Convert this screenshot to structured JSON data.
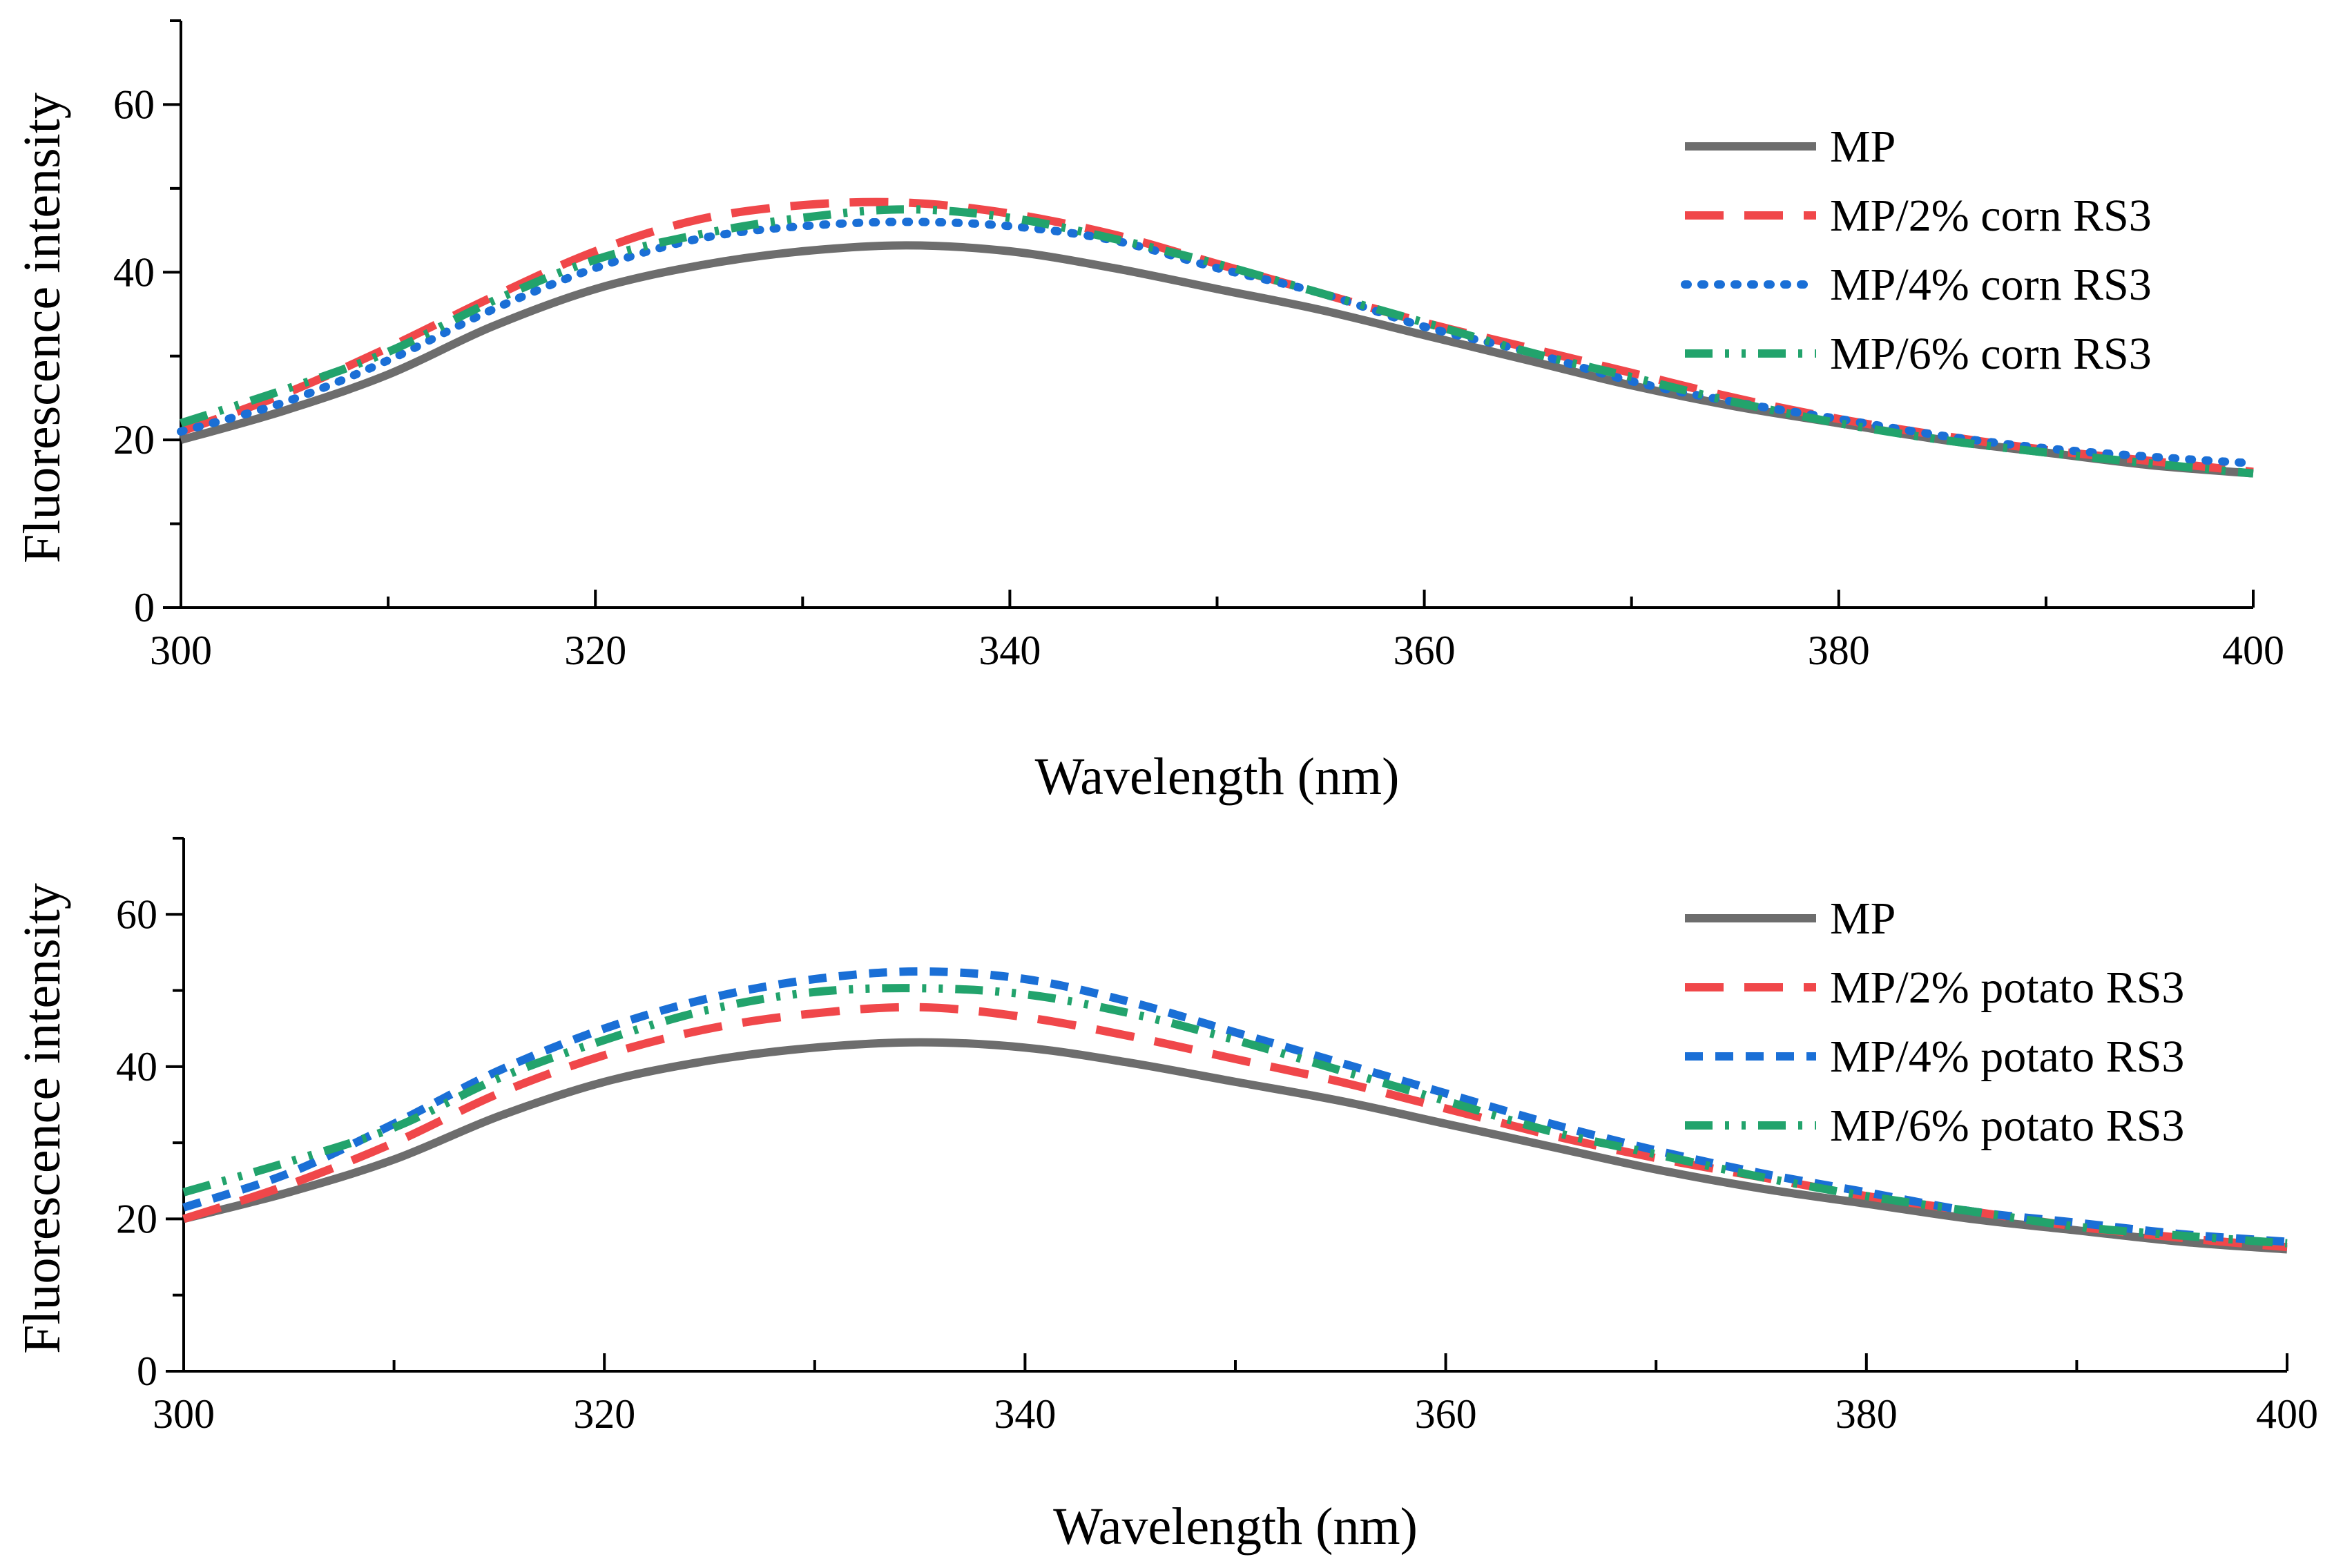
{
  "chart_data": [
    {
      "type": "line",
      "title": "",
      "xlabel": "Wavelength (nm)",
      "ylabel": "Fluorescence intensity",
      "xlim": [
        300,
        400
      ],
      "ylim": [
        0,
        70
      ],
      "x_ticks": [
        300,
        320,
        340,
        360,
        380,
        400
      ],
      "y_ticks": [
        0,
        20,
        40,
        60
      ],
      "x_tick_labels": [
        "300",
        "320",
        "340",
        "360",
        "380",
        "400"
      ],
      "y_tick_labels": [
        "0",
        "20",
        "40",
        "60"
      ],
      "grid": false,
      "legend_position": "top-right",
      "x": [
        300,
        305,
        310,
        315,
        320,
        325,
        330,
        335,
        340,
        345,
        350,
        355,
        360,
        365,
        370,
        375,
        380,
        385,
        390,
        395,
        400
      ],
      "series": [
        {
          "name": "MP",
          "color": "#6d6d6d",
          "style": "solid",
          "values": [
            20,
            23.5,
            27.8,
            33.5,
            38,
            40.8,
            42.5,
            43.2,
            42.5,
            40.5,
            38,
            35.5,
            32.5,
            29.5,
            26.5,
            24,
            22,
            20,
            18.5,
            17,
            16
          ]
        },
        {
          "name": "MP/2% corn RS3",
          "color": "#f0474a",
          "style": "dash",
          "values": [
            21,
            25.5,
            31,
            37,
            42.5,
            46.3,
            48,
            48.3,
            47,
            44.5,
            41,
            37.5,
            34,
            31,
            28,
            25,
            22.5,
            20.5,
            18.8,
            17.5,
            16.2
          ]
        },
        {
          "name": "MP/4% corn RS3",
          "color": "#1a6fd6",
          "style": "dot",
          "values": [
            21,
            24.5,
            29.5,
            35.5,
            40.5,
            44,
            45.5,
            46,
            45.5,
            43.8,
            40.5,
            37.5,
            33.5,
            30.5,
            27,
            24.5,
            22.5,
            20.5,
            19,
            18,
            17.2
          ]
        },
        {
          "name": "MP/6% corn RS3",
          "color": "#22a36c",
          "style": "dashdotdot",
          "values": [
            22,
            26,
            30.5,
            36.5,
            41.5,
            44.5,
            46.5,
            47.5,
            46.5,
            44,
            41,
            37.5,
            34,
            30.5,
            27.5,
            24.5,
            22,
            20,
            18.5,
            17.2,
            16
          ]
        }
      ]
    },
    {
      "type": "line",
      "title": "",
      "xlabel": "Wavelength (nm)",
      "ylabel": "Fluorescence intensity",
      "xlim": [
        300,
        400
      ],
      "ylim": [
        0,
        70
      ],
      "x_ticks": [
        300,
        320,
        340,
        360,
        380,
        400
      ],
      "y_ticks": [
        0,
        20,
        40,
        60
      ],
      "x_tick_labels": [
        "300",
        "320",
        "340",
        "360",
        "380",
        "400"
      ],
      "y_tick_labels": [
        "0",
        "20",
        "40",
        "60"
      ],
      "grid": false,
      "legend_position": "top-right",
      "x": [
        300,
        305,
        310,
        315,
        320,
        325,
        330,
        335,
        340,
        345,
        350,
        355,
        360,
        365,
        370,
        375,
        380,
        385,
        390,
        395,
        400
      ],
      "series": [
        {
          "name": "MP",
          "color": "#6d6d6d",
          "style": "solid",
          "values": [
            20,
            23.5,
            27.8,
            33.5,
            38,
            40.8,
            42.5,
            43.2,
            42.5,
            40.5,
            38,
            35.5,
            32.5,
            29.5,
            26.5,
            24,
            22,
            20,
            18.5,
            17,
            16
          ]
        },
        {
          "name": "MP/2% potato RS3",
          "color": "#f0474a",
          "style": "dash",
          "values": [
            20,
            24.5,
            30,
            36.5,
            41.5,
            45,
            47,
            47.8,
            46.5,
            44,
            41,
            38,
            34.5,
            31,
            28,
            25.5,
            23,
            21,
            19,
            17.5,
            16.3
          ]
        },
        {
          "name": "MP/4% potato RS3",
          "color": "#1a6fd6",
          "style": "dash-short",
          "values": [
            21.5,
            26,
            32.5,
            39.5,
            45,
            49,
            51.5,
            52.5,
            51.5,
            48.5,
            44.5,
            40.5,
            36.5,
            32.5,
            29,
            26,
            23.5,
            21,
            19.5,
            18,
            17
          ]
        },
        {
          "name": "MP/6% potato RS3",
          "color": "#22a36c",
          "style": "dashdotdot",
          "values": [
            23.5,
            27.5,
            32,
            38.5,
            43.5,
            47.5,
            49.8,
            50.3,
            49.5,
            47,
            43.5,
            39.5,
            35.5,
            31.5,
            28.5,
            25.5,
            23,
            21,
            19,
            17.8,
            16.8
          ]
        }
      ]
    }
  ]
}
